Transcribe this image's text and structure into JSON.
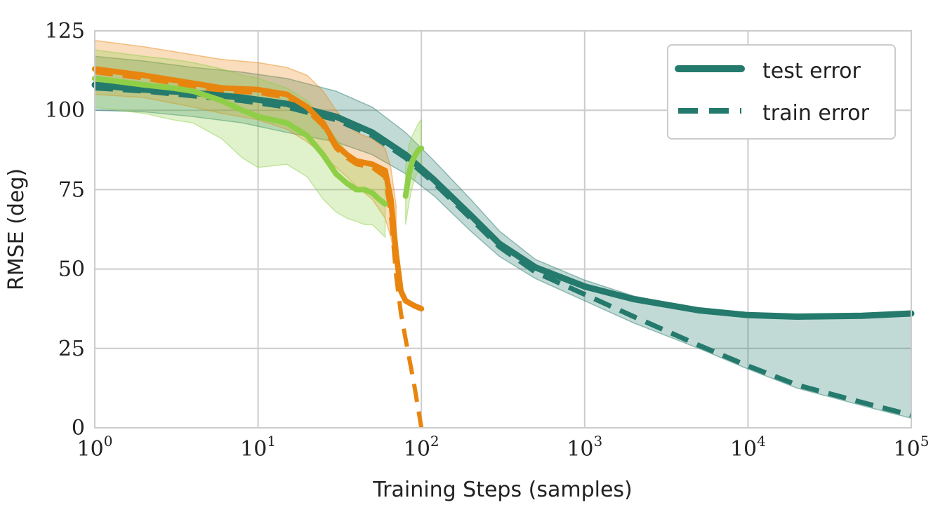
{
  "chart_data": {
    "type": "line",
    "title": "",
    "xlabel": "Training Steps (samples)",
    "ylabel": "RMSE (deg)",
    "xscale": "log",
    "xlim": [
      1,
      100000
    ],
    "ylim": [
      0,
      125
    ],
    "grid": true,
    "x_ticks": [
      {
        "base": "10",
        "exp": "0"
      },
      {
        "base": "10",
        "exp": "1"
      },
      {
        "base": "10",
        "exp": "2"
      },
      {
        "base": "10",
        "exp": "3"
      },
      {
        "base": "10",
        "exp": "4"
      },
      {
        "base": "10",
        "exp": "5"
      }
    ],
    "y_ticks": [
      "0",
      "25",
      "50",
      "75",
      "100",
      "125"
    ],
    "y_tick_values": [
      0,
      25,
      50,
      75,
      100,
      125
    ],
    "legend": {
      "position": "top-right",
      "entries": [
        {
          "label": "test error",
          "style": "solid"
        },
        {
          "label": "train error",
          "style": "dashed"
        }
      ]
    },
    "colors": {
      "teal": "#247a6c",
      "orange": "#e8850f",
      "green": "#8fcf48",
      "grid": "#cccccc",
      "legend_border": "#cccccc"
    },
    "series": [
      {
        "name": "teal test error",
        "color": "#247a6c",
        "style": "solid",
        "width": 9,
        "x": [
          1,
          2,
          4,
          8,
          15,
          30,
          50,
          80,
          120,
          200,
          300,
          500,
          1000,
          2000,
          5000,
          10000,
          20000,
          50000,
          100000
        ],
        "values": [
          108,
          106.5,
          105.5,
          104,
          102,
          98,
          93,
          86,
          78,
          67,
          58,
          50.5,
          44.5,
          40.5,
          37,
          35.5,
          35,
          35.3,
          36
        ]
      },
      {
        "name": "teal train error",
        "color": "#247a6c",
        "style": "dashed",
        "width": 7,
        "x": [
          1,
          2,
          4,
          8,
          15,
          30,
          50,
          80,
          120,
          200,
          300,
          500,
          1000,
          2000,
          5000,
          10000,
          20000,
          50000,
          100000
        ],
        "values": [
          107,
          106,
          104.5,
          103,
          101,
          97,
          92,
          85,
          77,
          66,
          57,
          49,
          42,
          35,
          26,
          19.5,
          13.5,
          8,
          4
        ]
      },
      {
        "name": "teal band",
        "color": "#247a6c",
        "style": "band",
        "x": [
          1,
          2,
          4,
          8,
          15,
          30,
          50,
          80,
          120,
          200,
          300,
          500,
          1000,
          2000,
          5000,
          10000,
          20000,
          50000,
          100000
        ],
        "lower": [
          100,
          99.5,
          98,
          96,
          93,
          90,
          86,
          80,
          73,
          62,
          54,
          47,
          40,
          33,
          25,
          18.5,
          12.5,
          7,
          3
        ],
        "upper": [
          117,
          115.5,
          113.5,
          112,
          110,
          106,
          101,
          93,
          84,
          72,
          62,
          53,
          46.5,
          41.5,
          37.5,
          36,
          35.5,
          35.8,
          36.6
        ]
      },
      {
        "name": "orange test error",
        "color": "#e8850f",
        "style": "solid",
        "width": 8,
        "x": [
          1,
          2,
          4,
          6,
          10,
          15,
          20,
          25,
          30,
          35,
          40,
          50,
          60,
          65,
          70,
          75,
          80,
          90,
          100
        ],
        "values": [
          113,
          111,
          108.5,
          107,
          106.5,
          105,
          101,
          96,
          89,
          86,
          84,
          83,
          81,
          72,
          55,
          43,
          40,
          38.5,
          37.5
        ]
      },
      {
        "name": "orange train error",
        "color": "#e8850f",
        "style": "dashed",
        "width": 6,
        "x": [
          1,
          2,
          4,
          6,
          10,
          15,
          20,
          25,
          30,
          35,
          40,
          50,
          60,
          65,
          70,
          75,
          80,
          90,
          100
        ],
        "values": [
          112,
          110,
          107.5,
          106,
          105.5,
          104,
          100,
          95,
          88,
          85,
          83,
          82,
          79,
          67,
          48,
          36,
          28,
          14,
          0
        ]
      },
      {
        "name": "orange band",
        "color": "#e8850f",
        "style": "band",
        "x": [
          1,
          2,
          4,
          6,
          10,
          15,
          20,
          25,
          30,
          35,
          40,
          50,
          60,
          65,
          70
        ],
        "lower": [
          105,
          104,
          101,
          99,
          97,
          94,
          90,
          86,
          82,
          79,
          76,
          72,
          66,
          60,
          52
        ],
        "upper": [
          122,
          120,
          117.5,
          116,
          115,
          113.5,
          111,
          106,
          100,
          96,
          93,
          91,
          88,
          82,
          70
        ]
      },
      {
        "name": "green test error",
        "color": "#8fcf48",
        "style": "solid",
        "width": 8,
        "x": [
          1,
          2,
          3,
          4,
          6,
          8,
          10,
          15,
          20,
          25,
          30,
          35,
          40,
          45,
          50,
          55,
          60
        ],
        "values": [
          110,
          108,
          107,
          106,
          103,
          100,
          98,
          96,
          92,
          86,
          80,
          77,
          75,
          75,
          74,
          72,
          70.5
        ]
      },
      {
        "name": "green band",
        "color": "#8fcf48",
        "style": "band",
        "x": [
          1,
          2,
          3,
          4,
          6,
          8,
          10,
          15,
          20,
          25,
          30,
          35,
          40,
          45,
          50,
          55,
          60
        ],
        "lower": [
          101,
          99,
          97,
          96,
          91,
          85,
          82,
          83,
          79,
          72,
          68,
          66,
          65,
          64,
          64,
          62,
          60
        ],
        "upper": [
          119,
          117,
          116,
          115,
          113,
          111,
          110,
          107,
          103,
          97,
          91,
          87,
          84,
          84,
          83,
          81,
          80
        ]
      },
      {
        "name": "green late segment",
        "color": "#8fcf48",
        "style": "solid",
        "width": 8,
        "x": [
          80,
          84,
          88,
          92,
          96,
          100
        ],
        "values": [
          73,
          80,
          84,
          86,
          87.5,
          88
        ]
      },
      {
        "name": "green late band",
        "color": "#8fcf48",
        "style": "band",
        "x": [
          80,
          84,
          88,
          92,
          96,
          100
        ],
        "lower": [
          64,
          71,
          76,
          79,
          81,
          82
        ],
        "upper": [
          82,
          89,
          92,
          94,
          96,
          97
        ]
      }
    ]
  }
}
